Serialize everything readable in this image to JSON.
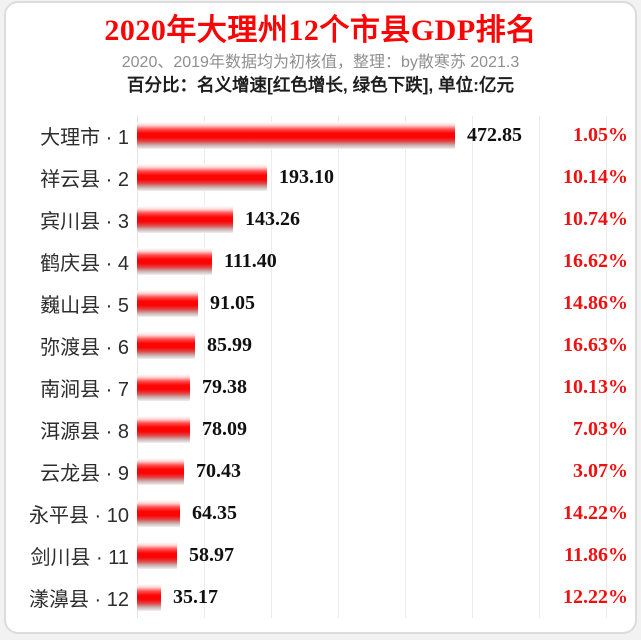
{
  "page": {
    "title": "2020年大理州12个市县GDP排名",
    "subtitle1": "2020、2019年数据均为初核值，整理：by散寒苏 2021.3",
    "subtitle2": "百分比：名义增速[红色增长, 绿色下跌], 单位:亿元"
  },
  "colors": {
    "title_red": "#fa0505",
    "bar_red": "#fb0404",
    "percent_red": "#ee1111",
    "subtitle_gray": "#8f8f8f",
    "gridline_gray": "#ececec"
  },
  "chart_data": {
    "type": "bar",
    "orientation": "horizontal",
    "title": "2020年大理州12个市县GDP排名",
    "unit": "亿元",
    "value_meaning": "GDP 2020 (亿元)",
    "percent_meaning": "名义增速 (红色增长, 绿色下跌)",
    "xlim": [
      0,
      700
    ],
    "grid": true,
    "gridline_interval": 100,
    "categories": [
      "大理市",
      "祥云县",
      "宾川县",
      "鹤庆县",
      "巍山县",
      "弥渡县",
      "南涧县",
      "洱源县",
      "云龙县",
      "永平县",
      "剑川县",
      "漾濞县"
    ],
    "rows": [
      {
        "name": "大理市",
        "rank": 1,
        "value": 472.85,
        "value_str": "472.85",
        "growth": "1.05%",
        "growth_direction": "up"
      },
      {
        "name": "祥云县",
        "rank": 2,
        "value": 193.1,
        "value_str": "193.10",
        "growth": "10.14%",
        "growth_direction": "up"
      },
      {
        "name": "宾川县",
        "rank": 3,
        "value": 143.26,
        "value_str": "143.26",
        "growth": "10.74%",
        "growth_direction": "up"
      },
      {
        "name": "鹤庆县",
        "rank": 4,
        "value": 111.4,
        "value_str": "111.40",
        "growth": "16.62%",
        "growth_direction": "up"
      },
      {
        "name": "巍山县",
        "rank": 5,
        "value": 91.05,
        "value_str": "91.05",
        "growth": "14.86%",
        "growth_direction": "up"
      },
      {
        "name": "弥渡县",
        "rank": 6,
        "value": 85.99,
        "value_str": "85.99",
        "growth": "16.63%",
        "growth_direction": "up"
      },
      {
        "name": "南涧县",
        "rank": 7,
        "value": 79.38,
        "value_str": "79.38",
        "growth": "10.13%",
        "growth_direction": "up"
      },
      {
        "name": "洱源县",
        "rank": 8,
        "value": 78.09,
        "value_str": "78.09",
        "growth": "7.03%",
        "growth_direction": "up"
      },
      {
        "name": "云龙县",
        "rank": 9,
        "value": 70.43,
        "value_str": "70.43",
        "growth": "3.07%",
        "growth_direction": "up"
      },
      {
        "name": "永平县",
        "rank": 10,
        "value": 64.35,
        "value_str": "64.35",
        "growth": "14.22%",
        "growth_direction": "up"
      },
      {
        "name": "剑川县",
        "rank": 11,
        "value": 58.97,
        "value_str": "58.97",
        "growth": "11.86%",
        "growth_direction": "up"
      },
      {
        "name": "漾濞县",
        "rank": 12,
        "value": 35.17,
        "value_str": "35.17",
        "growth": "12.22%",
        "growth_direction": "up"
      }
    ]
  }
}
